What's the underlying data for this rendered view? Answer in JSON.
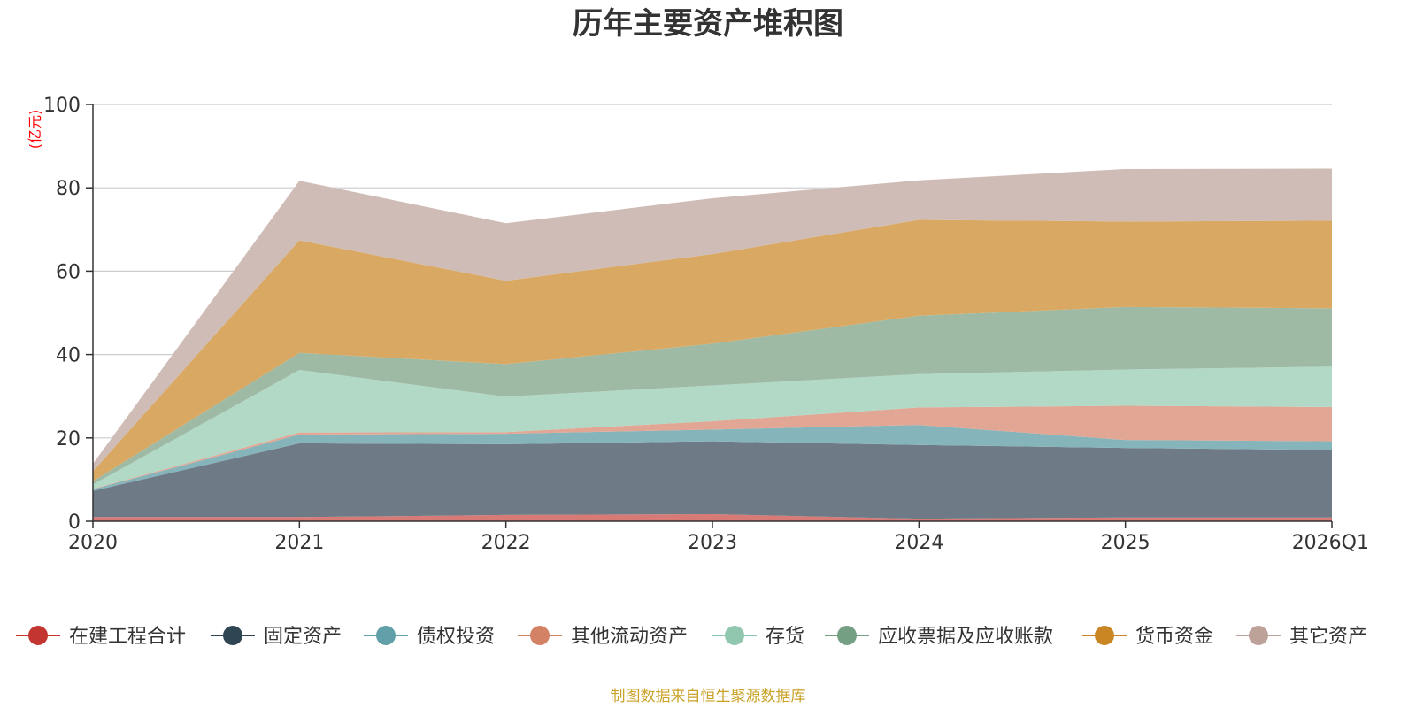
{
  "chart_data": {
    "type": "area",
    "title": "历年主要资产堆积图",
    "ylabel": "(亿元)",
    "xlabel": "",
    "categories": [
      "2020",
      "2021",
      "2022",
      "2023",
      "2024",
      "2025",
      "2026Q1"
    ],
    "ylim": [
      0,
      100
    ],
    "yticks": [
      0,
      20,
      40,
      60,
      80,
      100
    ],
    "grid": true,
    "stacked": true,
    "legend_position": "bottom",
    "series": [
      {
        "name": "在建工程合计",
        "color": "#c23531",
        "fill": "#d87a76",
        "values": [
          1.0,
          1.0,
          1.5,
          1.7,
          0.6,
          0.9,
          0.9
        ]
      },
      {
        "name": "固定资产",
        "color": "#2f4554",
        "fill": "#6e7b87",
        "values": [
          6.3,
          17.7,
          17.0,
          17.5,
          17.7,
          16.7,
          16.2
        ]
      },
      {
        "name": "债权投资",
        "color": "#61a0a8",
        "fill": "#85b5bb",
        "values": [
          0.4,
          2.1,
          2.5,
          2.8,
          4.8,
          1.9,
          2.1
        ]
      },
      {
        "name": "其他流动资产",
        "color": "#d48265",
        "fill": "#e2a694",
        "values": [
          0.1,
          0.5,
          0.4,
          2.0,
          4.2,
          8.2,
          8.2
        ]
      },
      {
        "name": "存货",
        "color": "#91c7ae",
        "fill": "#b2d8c6",
        "values": [
          1.0,
          15.0,
          8.5,
          8.6,
          8.0,
          8.7,
          9.7
        ]
      },
      {
        "name": "应收票据及应收账款",
        "color": "#749f83",
        "fill": "#9ebaa5",
        "values": [
          0.8,
          4.1,
          7.8,
          10.0,
          14.0,
          15.0,
          14.0
        ]
      },
      {
        "name": "货币资金",
        "color": "#ca8622",
        "fill": "#d9a963",
        "values": [
          2.4,
          27.0,
          20.0,
          21.5,
          23.0,
          20.5,
          21.0
        ]
      },
      {
        "name": "其它资产",
        "color": "#bda29a",
        "fill": "#d0bcb6",
        "values": [
          1.8,
          14.3,
          13.8,
          13.4,
          9.5,
          12.6,
          12.5
        ]
      }
    ]
  },
  "source_note": "制图数据来自恒生聚源数据库",
  "colors": {
    "axis": "#333333",
    "grid": "#cccccc",
    "unit_label": "#ff0000",
    "source_note": "#c9a227",
    "tick_text": "#333333"
  }
}
